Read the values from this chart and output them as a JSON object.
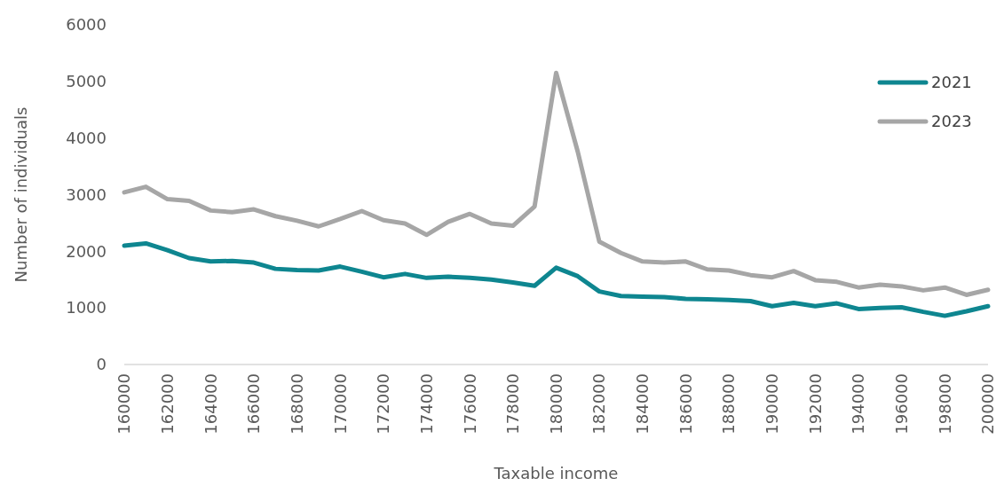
{
  "chart_data": {
    "type": "line",
    "xlabel": "Taxable income",
    "ylabel": "Number of individuals",
    "x": [
      160000,
      161000,
      162000,
      163000,
      164000,
      165000,
      166000,
      167000,
      168000,
      169000,
      170000,
      171000,
      172000,
      173000,
      174000,
      175000,
      176000,
      177000,
      178000,
      179000,
      180000,
      181000,
      182000,
      183000,
      184000,
      185000,
      186000,
      187000,
      188000,
      189000,
      190000,
      191000,
      192000,
      193000,
      194000,
      195000,
      196000,
      197000,
      198000,
      199000,
      200000
    ],
    "series": [
      {
        "name": "2021",
        "color": "#0e8690",
        "values": [
          2100,
          2140,
          2020,
          1880,
          1820,
          1830,
          1800,
          1690,
          1670,
          1660,
          1730,
          1640,
          1540,
          1600,
          1530,
          1550,
          1530,
          1500,
          1450,
          1390,
          1710,
          1560,
          1290,
          1210,
          1200,
          1190,
          1160,
          1150,
          1140,
          1120,
          1030,
          1090,
          1030,
          1080,
          980,
          1000,
          1010,
          930,
          860,
          940,
          1030
        ]
      },
      {
        "name": "2023",
        "color": "#a6a6a6",
        "values": [
          3040,
          3140,
          2920,
          2890,
          2720,
          2690,
          2740,
          2620,
          2540,
          2440,
          2570,
          2710,
          2550,
          2490,
          2290,
          2520,
          2660,
          2490,
          2450,
          2790,
          5150,
          3760,
          2170,
          1970,
          1820,
          1800,
          1820,
          1680,
          1660,
          1580,
          1540,
          1650,
          1490,
          1460,
          1360,
          1410,
          1380,
          1310,
          1360,
          1230,
          1320
        ]
      }
    ],
    "xlim": [
      160000,
      200000
    ],
    "xticks": [
      160000,
      162000,
      164000,
      166000,
      168000,
      170000,
      172000,
      174000,
      176000,
      178000,
      180000,
      182000,
      184000,
      186000,
      188000,
      190000,
      192000,
      194000,
      196000,
      198000,
      200000
    ],
    "ylim": [
      0,
      6000
    ],
    "yticks": [
      0,
      1000,
      2000,
      3000,
      4000,
      5000,
      6000
    ],
    "grid": false,
    "legend": "top right",
    "marker": "none",
    "line_style": "solid"
  }
}
